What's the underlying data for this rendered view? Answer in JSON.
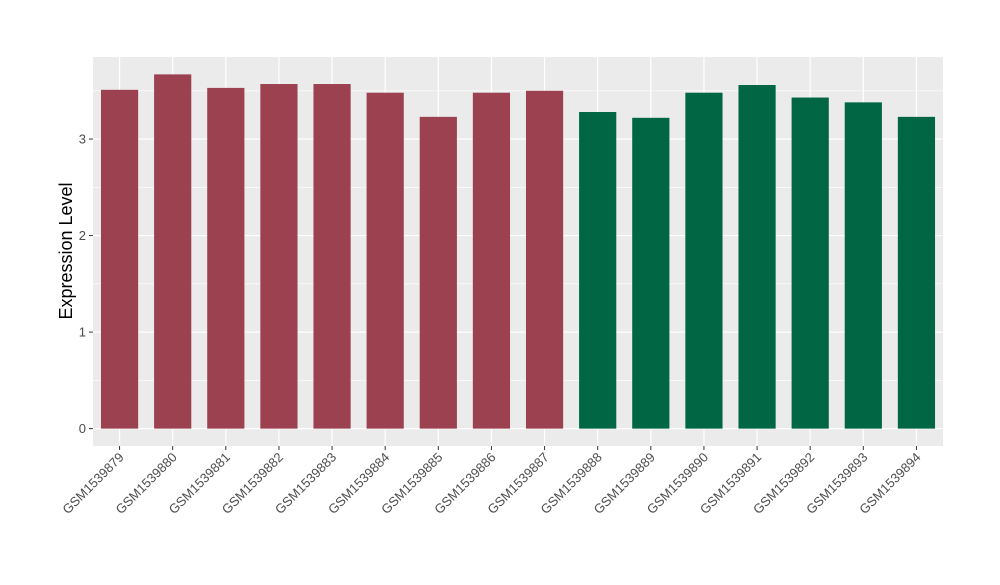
{
  "chart_data": {
    "type": "bar",
    "title": "",
    "xlabel": "",
    "ylabel": "Expression Level",
    "ylim": [
      -0.18,
      3.85
    ],
    "yticks": [
      0,
      1,
      2,
      3
    ],
    "grid": true,
    "categories": [
      "GSM1539879",
      "GSM1539880",
      "GSM1539881",
      "GSM1539882",
      "GSM1539883",
      "GSM1539884",
      "GSM1539885",
      "GSM1539886",
      "GSM1539887",
      "GSM1539888",
      "GSM1539889",
      "GSM1539890",
      "GSM1539891",
      "GSM1539892",
      "GSM1539893",
      "GSM1539894"
    ],
    "values": [
      3.51,
      3.67,
      3.53,
      3.57,
      3.57,
      3.48,
      3.23,
      3.48,
      3.5,
      3.28,
      3.22,
      3.48,
      3.56,
      3.43,
      3.38,
      3.23
    ],
    "groups": [
      0,
      0,
      0,
      0,
      0,
      0,
      0,
      0,
      0,
      1,
      1,
      1,
      1,
      1,
      1,
      1
    ],
    "group_colors": [
      "#9b4150",
      "#006644"
    ],
    "panel_background": "#ebebeb"
  }
}
